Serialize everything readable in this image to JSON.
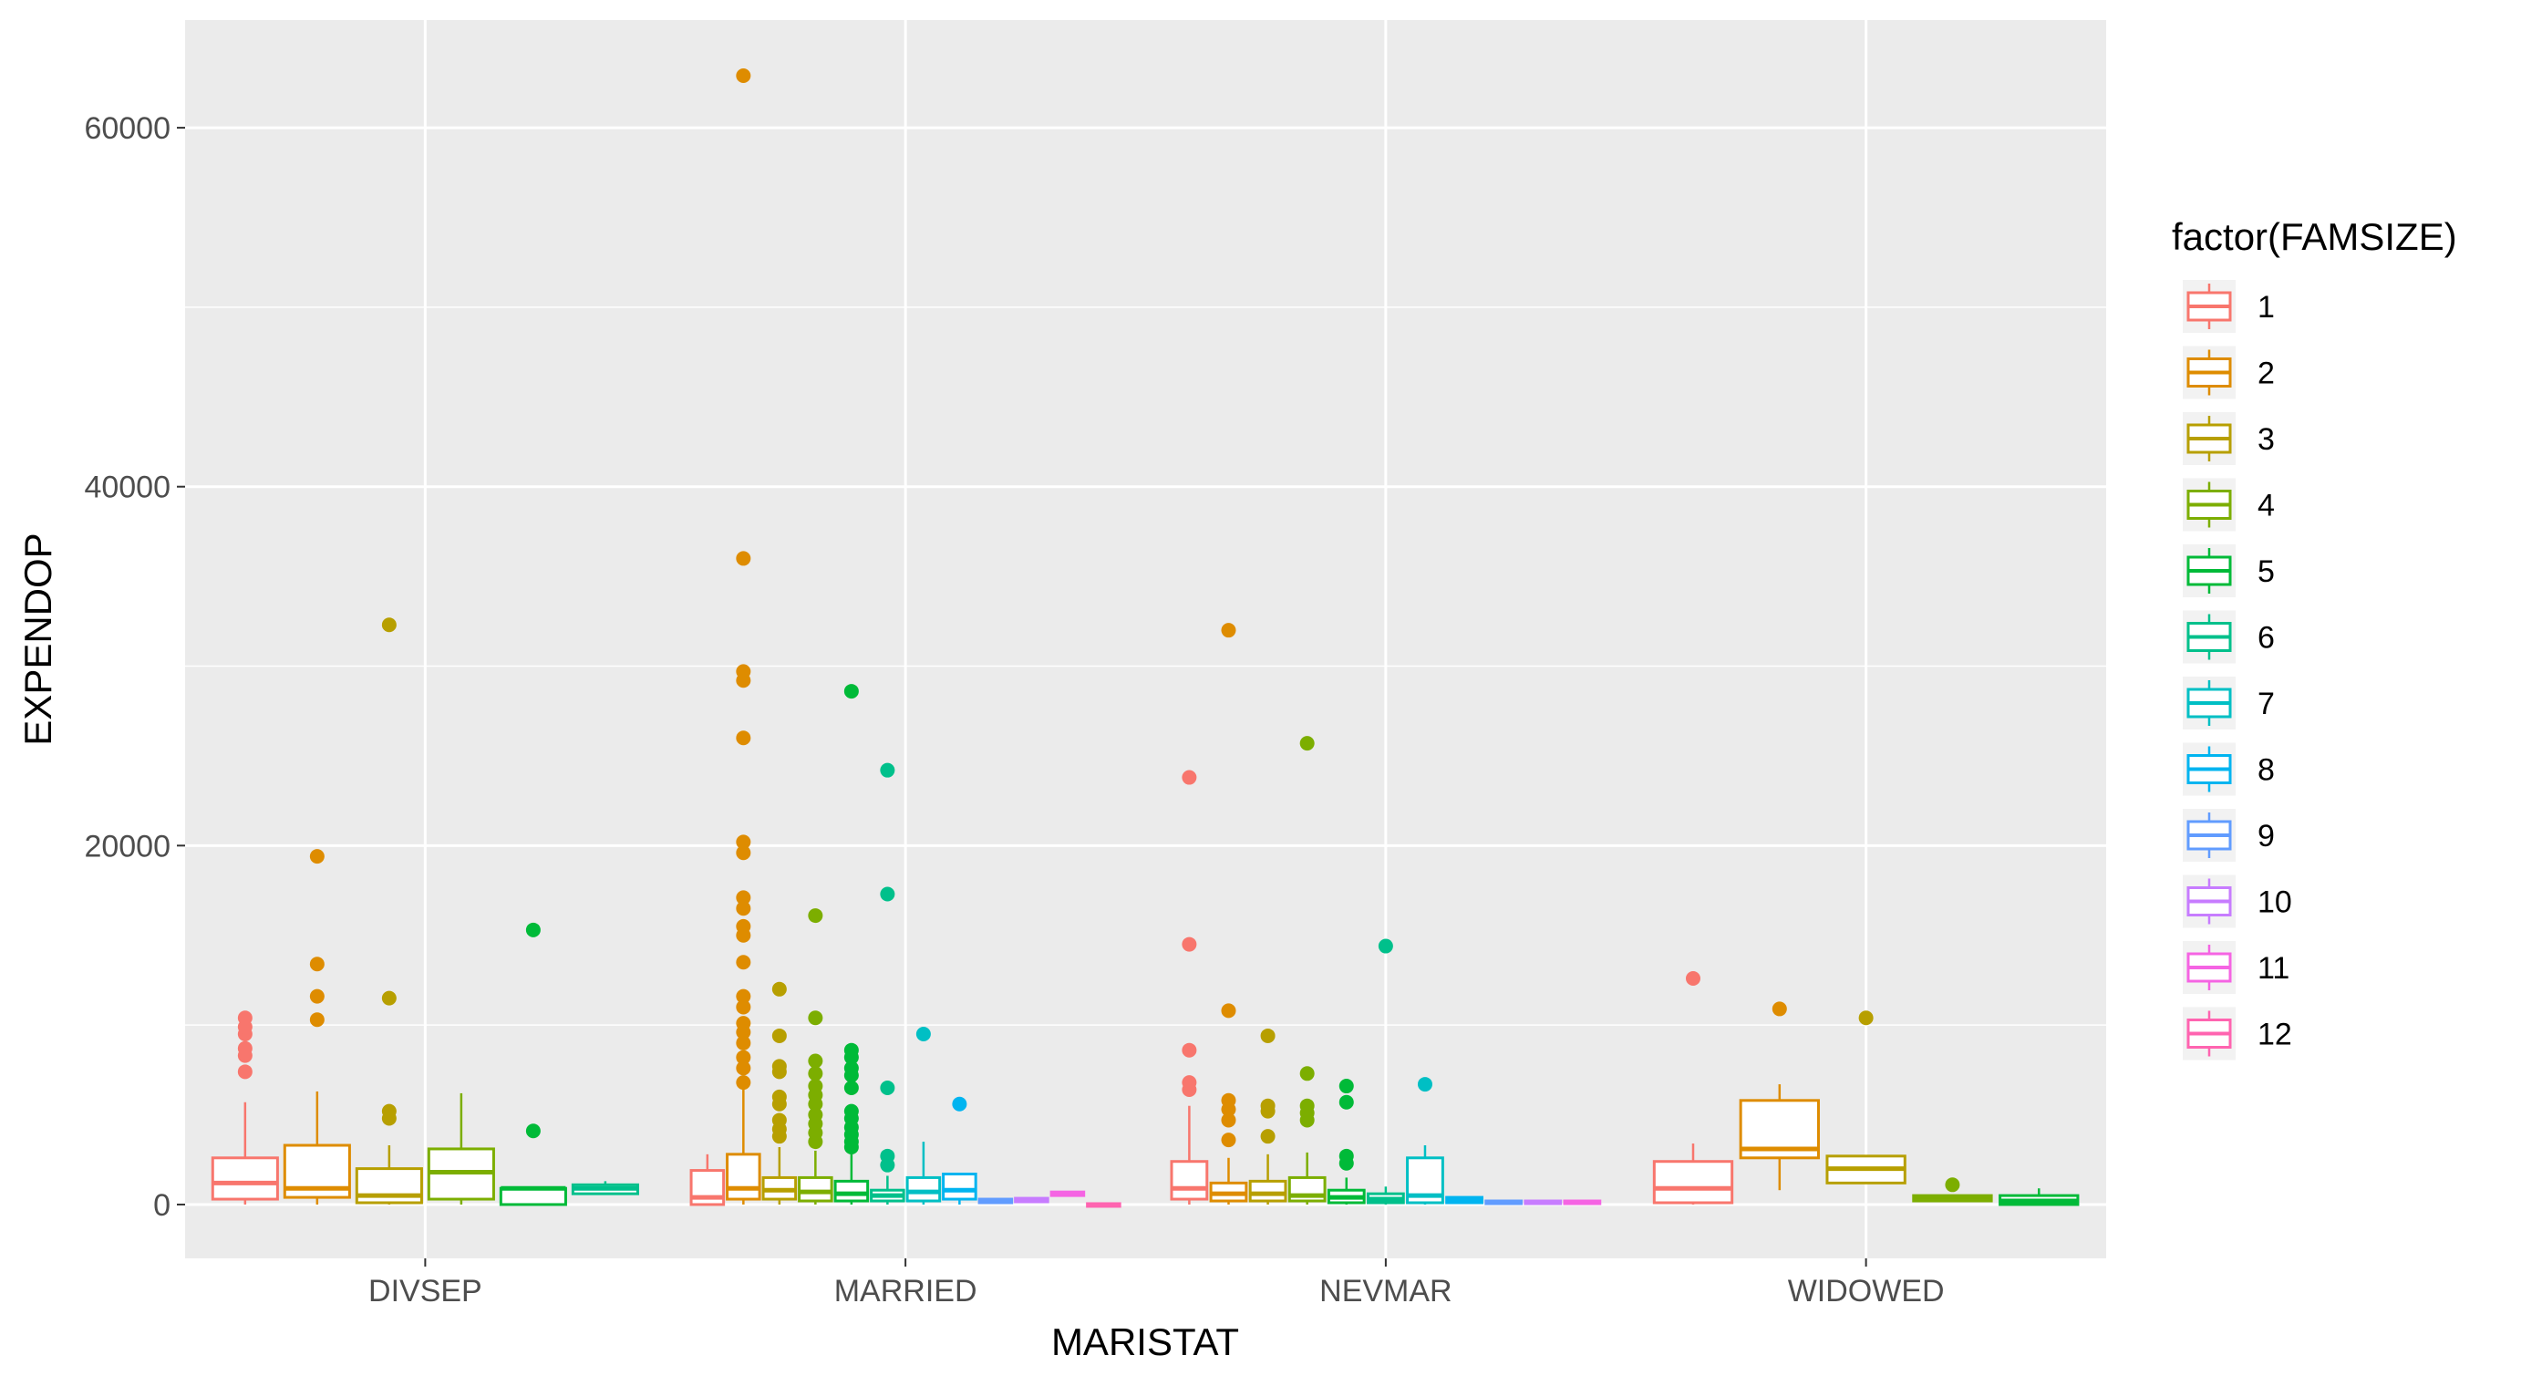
{
  "chart_data": {
    "type": "boxplot",
    "xlabel": "MARISTAT",
    "ylabel": "EXPENDOP",
    "categories": [
      "DIVSEP",
      "MARRIED",
      "NEVMAR",
      "WIDOWED"
    ],
    "y_ticks": [
      0,
      20000,
      40000,
      60000
    ],
    "y_tick_labels": [
      "0",
      "20000",
      "40000",
      "60000"
    ],
    "ylim": [
      -3000,
      66000
    ],
    "grid": true,
    "legend": {
      "title": "factor(FAMSIZE)",
      "position": "right",
      "entries": [
        "1",
        "2",
        "3",
        "4",
        "5",
        "6",
        "7",
        "8",
        "9",
        "10",
        "11",
        "12"
      ]
    },
    "series": [
      {
        "name": "1",
        "color": "#F8766D"
      },
      {
        "name": "2",
        "color": "#DE8C00"
      },
      {
        "name": "3",
        "color": "#B79F00"
      },
      {
        "name": "4",
        "color": "#7CAE00"
      },
      {
        "name": "5",
        "color": "#00BA38"
      },
      {
        "name": "6",
        "color": "#00C08B"
      },
      {
        "name": "7",
        "color": "#00BFC4"
      },
      {
        "name": "8",
        "color": "#00B4F0"
      },
      {
        "name": "9",
        "color": "#619CFF"
      },
      {
        "name": "10",
        "color": "#C77CFF"
      },
      {
        "name": "11",
        "color": "#F564E3"
      },
      {
        "name": "12",
        "color": "#FF64B0"
      }
    ],
    "boxes": [
      {
        "category": "DIVSEP",
        "famsize": "1",
        "q1": 300,
        "median": 1200,
        "q3": 2600,
        "whisker_low": 0,
        "whisker_high": 5700,
        "outliers": [
          7400,
          8300,
          8700,
          9500,
          9900,
          10400
        ]
      },
      {
        "category": "DIVSEP",
        "famsize": "2",
        "q1": 400,
        "median": 900,
        "q3": 3300,
        "whisker_low": 0,
        "whisker_high": 6300,
        "outliers": [
          10300,
          11600,
          13400,
          19400
        ]
      },
      {
        "category": "DIVSEP",
        "famsize": "3",
        "q1": 100,
        "median": 500,
        "q3": 2000,
        "whisker_low": 0,
        "whisker_high": 3300,
        "outliers": [
          4800,
          5200,
          11500,
          32300
        ]
      },
      {
        "category": "DIVSEP",
        "famsize": "4",
        "q1": 300,
        "median": 1800,
        "q3": 3100,
        "whisker_low": 0,
        "whisker_high": 6200,
        "outliers": []
      },
      {
        "category": "DIVSEP",
        "famsize": "5",
        "q1": 0,
        "median": 900,
        "q3": 900,
        "whisker_low": 0,
        "whisker_high": 900,
        "outliers": [
          4100,
          15300
        ]
      },
      {
        "category": "DIVSEP",
        "famsize": "6",
        "q1": 600,
        "median": 900,
        "q3": 1100,
        "whisker_low": 600,
        "whisker_high": 1300,
        "outliers": []
      },
      {
        "category": "MARRIED",
        "famsize": "1",
        "q1": 0,
        "median": 400,
        "q3": 1900,
        "whisker_low": 0,
        "whisker_high": 2800,
        "outliers": []
      },
      {
        "category": "MARRIED",
        "famsize": "2",
        "q1": 300,
        "median": 900,
        "q3": 2800,
        "whisker_low": 0,
        "whisker_high": 6500,
        "outliers": [
          6800,
          7600,
          8200,
          9000,
          9600,
          10100,
          11000,
          11600,
          13500,
          15000,
          15500,
          16500,
          17100,
          19600,
          20200,
          26000,
          29200,
          29700,
          36000,
          62900
        ]
      },
      {
        "category": "MARRIED",
        "famsize": "3",
        "q1": 300,
        "median": 800,
        "q3": 1500,
        "whisker_low": 0,
        "whisker_high": 3200,
        "outliers": [
          3800,
          4200,
          4700,
          5600,
          6000,
          7400,
          7700,
          9400,
          12000
        ]
      },
      {
        "category": "MARRIED",
        "famsize": "4",
        "q1": 200,
        "median": 700,
        "q3": 1500,
        "whisker_low": 0,
        "whisker_high": 3000,
        "outliers": [
          3500,
          4000,
          4500,
          5000,
          5600,
          6100,
          6600,
          7300,
          8000,
          10400,
          16100
        ]
      },
      {
        "category": "MARRIED",
        "famsize": "5",
        "q1": 200,
        "median": 600,
        "q3": 1300,
        "whisker_low": 0,
        "whisker_high": 2800,
        "outliers": [
          3200,
          3500,
          3900,
          4300,
          4800,
          5200,
          6500,
          7200,
          7600,
          8200,
          8600,
          28600
        ]
      },
      {
        "category": "MARRIED",
        "famsize": "6",
        "q1": 200,
        "median": 500,
        "q3": 800,
        "whisker_low": 0,
        "whisker_high": 1600,
        "outliers": [
          2200,
          2700,
          6500,
          17300,
          24200
        ]
      },
      {
        "category": "MARRIED",
        "famsize": "7",
        "q1": 200,
        "median": 700,
        "q3": 1500,
        "whisker_low": 0,
        "whisker_high": 3500,
        "outliers": [
          9500
        ]
      },
      {
        "category": "MARRIED",
        "famsize": "8",
        "q1": 300,
        "median": 800,
        "q3": 1700,
        "whisker_low": 0,
        "whisker_high": 1700,
        "outliers": [
          5600
        ]
      },
      {
        "category": "MARRIED",
        "famsize": "9",
        "q1": 100,
        "median": 200,
        "q3": 300,
        "whisker_low": 100,
        "whisker_high": 300,
        "outliers": []
      },
      {
        "category": "MARRIED",
        "famsize": "10",
        "q1": 150,
        "median": 250,
        "q3": 350,
        "whisker_low": 150,
        "whisker_high": 350,
        "outliers": []
      },
      {
        "category": "MARRIED",
        "famsize": "11",
        "q1": 500,
        "median": 600,
        "q3": 700,
        "whisker_low": 500,
        "whisker_high": 700,
        "outliers": []
      },
      {
        "category": "MARRIED",
        "famsize": "12",
        "q1": 0,
        "median": 0,
        "q3": 50,
        "whisker_low": 0,
        "whisker_high": 50,
        "outliers": []
      },
      {
        "category": "NEVMAR",
        "famsize": "1",
        "q1": 300,
        "median": 900,
        "q3": 2400,
        "whisker_low": 0,
        "whisker_high": 5500,
        "outliers": [
          6400,
          6800,
          8600,
          14500,
          23800
        ]
      },
      {
        "category": "NEVMAR",
        "famsize": "2",
        "q1": 200,
        "median": 600,
        "q3": 1200,
        "whisker_low": 0,
        "whisker_high": 2600,
        "outliers": [
          3600,
          4700,
          5300,
          5800,
          10800,
          32000
        ]
      },
      {
        "category": "NEVMAR",
        "famsize": "3",
        "q1": 200,
        "median": 600,
        "q3": 1300,
        "whisker_low": 0,
        "whisker_high": 2800,
        "outliers": [
          3800,
          5200,
          5500,
          9400
        ]
      },
      {
        "category": "NEVMAR",
        "famsize": "4",
        "q1": 200,
        "median": 500,
        "q3": 1500,
        "whisker_low": 0,
        "whisker_high": 2900,
        "outliers": [
          4700,
          5100,
          5500,
          7300,
          25700
        ]
      },
      {
        "category": "NEVMAR",
        "famsize": "5",
        "q1": 100,
        "median": 400,
        "q3": 800,
        "whisker_low": 0,
        "whisker_high": 1500,
        "outliers": [
          2300,
          2700,
          5700,
          6600
        ]
      },
      {
        "category": "NEVMAR",
        "famsize": "6",
        "q1": 100,
        "median": 300,
        "q3": 600,
        "whisker_low": 0,
        "whisker_high": 1000,
        "outliers": [
          14400
        ]
      },
      {
        "category": "NEVMAR",
        "famsize": "7",
        "q1": 100,
        "median": 500,
        "q3": 2600,
        "whisker_low": 0,
        "whisker_high": 3300,
        "outliers": [
          6700
        ]
      },
      {
        "category": "NEVMAR",
        "famsize": "8",
        "q1": 100,
        "median": 300,
        "q3": 400,
        "whisker_low": 100,
        "whisker_high": 400,
        "outliers": []
      },
      {
        "category": "NEVMAR",
        "famsize": "9",
        "q1": 50,
        "median": 100,
        "q3": 200,
        "whisker_low": 50,
        "whisker_high": 200,
        "outliers": []
      },
      {
        "category": "NEVMAR",
        "famsize": "10",
        "q1": 50,
        "median": 100,
        "q3": 200,
        "whisker_low": 50,
        "whisker_high": 200,
        "outliers": []
      },
      {
        "category": "NEVMAR",
        "famsize": "11",
        "q1": 50,
        "median": 100,
        "q3": 200,
        "whisker_low": 50,
        "whisker_high": 200,
        "outliers": []
      },
      {
        "category": "WIDOWED",
        "famsize": "1",
        "q1": 100,
        "median": 900,
        "q3": 2400,
        "whisker_low": 0,
        "whisker_high": 3400,
        "outliers": [
          12600
        ]
      },
      {
        "category": "WIDOWED",
        "famsize": "2",
        "q1": 2600,
        "median": 3100,
        "q3": 5800,
        "whisker_low": 800,
        "whisker_high": 6700,
        "outliers": [
          10900
        ]
      },
      {
        "category": "WIDOWED",
        "famsize": "3",
        "q1": 1200,
        "median": 2000,
        "q3": 2700,
        "whisker_low": 1200,
        "whisker_high": 2700,
        "outliers": [
          10400
        ]
      },
      {
        "category": "WIDOWED",
        "famsize": "4",
        "q1": 200,
        "median": 400,
        "q3": 500,
        "whisker_low": 200,
        "whisker_high": 500,
        "outliers": [
          1100
        ]
      },
      {
        "category": "WIDOWED",
        "famsize": "5",
        "q1": 0,
        "median": 200,
        "q3": 500,
        "whisker_low": 0,
        "whisker_high": 900,
        "outliers": []
      }
    ]
  }
}
